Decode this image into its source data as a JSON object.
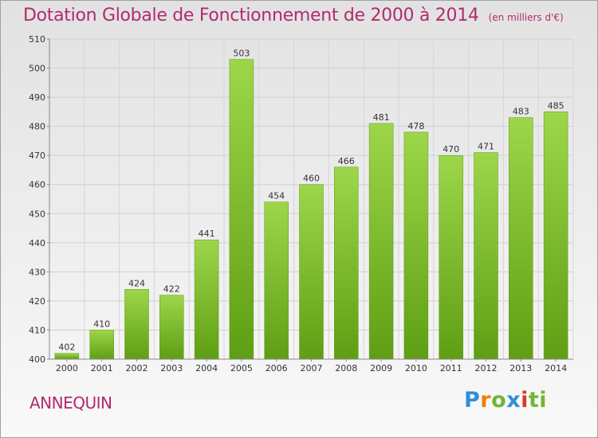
{
  "title": "Dotation Globale de Fonctionnement de 2000 à 2014",
  "subtitle": "(en milliers d'€)",
  "place": "ANNEQUIN",
  "logo": "Proxiti",
  "colors": {
    "title": "#b32a6d",
    "bar_top": "#9dd64a",
    "bar_bottom": "#5f9e14",
    "logo_blue": "#2f8fd6",
    "logo_orange": "#f07d12",
    "logo_green": "#6fb636",
    "logo_red": "#d83a2f"
  },
  "chart_data": {
    "type": "bar",
    "categories": [
      "2000",
      "2001",
      "2002",
      "2003",
      "2004",
      "2005",
      "2006",
      "2007",
      "2008",
      "2009",
      "2010",
      "2011",
      "2012",
      "2013",
      "2014"
    ],
    "values": [
      402,
      410,
      424,
      422,
      441,
      503,
      454,
      460,
      466,
      481,
      478,
      470,
      471,
      483,
      485
    ],
    "ylim": [
      400,
      510
    ],
    "yticks": [
      400,
      410,
      420,
      430,
      440,
      450,
      460,
      470,
      480,
      490,
      500,
      510
    ],
    "grid": true,
    "data_labels": true
  }
}
